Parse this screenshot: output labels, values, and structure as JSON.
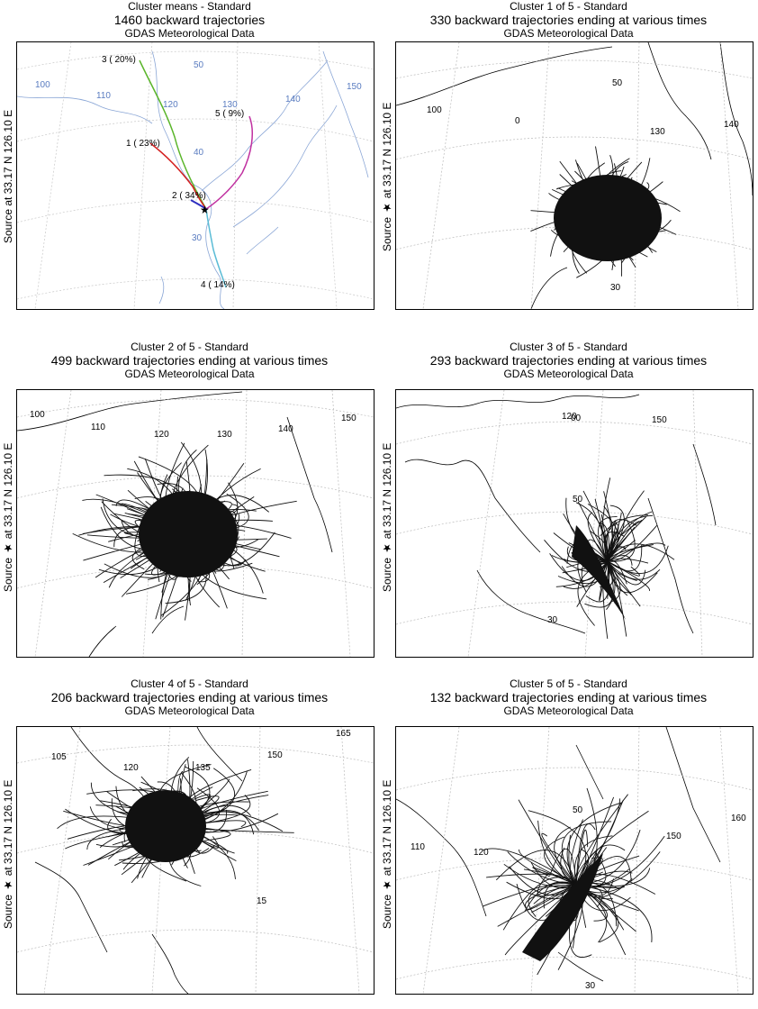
{
  "panels": [
    {
      "title": "Cluster means - Standard",
      "subtitle": "1460 backward trajectories",
      "data_source": "GDAS Meteorological Data",
      "source_label": "Source   at   33.17 N   126.10 E",
      "grid_labels": [
        "100",
        "110",
        "120",
        "130",
        "140",
        "150",
        "50",
        "40",
        "30"
      ],
      "clusters": [
        {
          "label": "1 ( 23%)",
          "color": "#d42020"
        },
        {
          "label": "2 ( 34%)",
          "color": "#3030c0"
        },
        {
          "label": "3 ( 20%)",
          "color": "#5ab52a"
        },
        {
          "label": "4 ( 14%)",
          "color": "#5bbcd6"
        },
        {
          "label": "5 (  9%)",
          "color": "#c030a0"
        }
      ]
    },
    {
      "title": "Cluster 1 of 5 - Standard",
      "subtitle": "330 backward trajectories ending at various times",
      "data_source": "GDAS Meteorological Data",
      "source_label": "Source  ★  at   33.17 N   126.10 E",
      "grid_labels": [
        "100",
        "50",
        "130",
        "140",
        "30",
        "0"
      ]
    },
    {
      "title": "Cluster 2 of 5 - Standard",
      "subtitle": "499 backward trajectories ending at various times",
      "data_source": "GDAS Meteorological Data",
      "source_label": "Source  ★  at   33.17 N   126.10 E",
      "grid_labels": [
        "100",
        "110",
        "120",
        "130",
        "140",
        "150"
      ]
    },
    {
      "title": "Cluster 3 of 5 - Standard",
      "subtitle": "293 backward trajectories ending at various times",
      "data_source": "GDAS Meteorological Data",
      "source_label": "Source  ★  at   33.17 N   126.10 E",
      "grid_labels": [
        "120",
        "150",
        "50",
        "30",
        "00"
      ]
    },
    {
      "title": "Cluster 4 of 5 - Standard",
      "subtitle": "206 backward trajectories ending at various times",
      "data_source": "GDAS Meteorological Data",
      "source_label": "Source  ★  at   33.17 N   126.10 E",
      "grid_labels": [
        "105",
        "120",
        "135",
        "150",
        "165",
        "15"
      ]
    },
    {
      "title": "Cluster 5 of 5 - Standard",
      "subtitle": "132 backward trajectories ending at various times",
      "data_source": "GDAS Meteorological Data",
      "source_label": "Source  ★  at   33.17 N   126.10 E",
      "grid_labels": [
        "110",
        "120",
        "50",
        "150",
        "160",
        "30"
      ]
    }
  ]
}
